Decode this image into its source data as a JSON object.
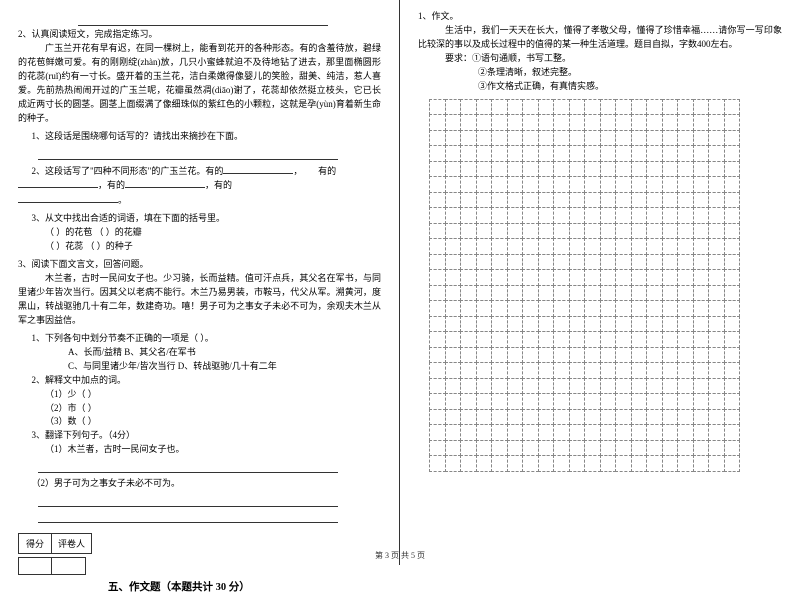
{
  "left": {
    "q2_title": "2、认真阅读短文，完成指定练习。",
    "passage_p1": "广玉兰开花有早有迟，在同一棵树上，能看到花开的各种形态。有的含羞待放，碧绿的花苞鲜嫩可爱。有的刚刚绽(zhàn)放，几只小蜜蜂就迫不及待地钻了进去，那里面椭圆形的花蕊(ruǐ)约有一寸长。盛开着的玉兰花，洁白柔嫩得像婴儿的笑脸，甜美、纯洁，惹人喜爱。先前热热闹闹开过的广玉兰呢，花瓣虽然凋(diāo)谢了，花蕊却依然挺立枝头，它已长成近两寸长的圆茎。圆茎上面缀满了像细珠似的紫红色的小颗粒，这就是孕(yùn)育着新生命的种子。",
    "q2_1": "1、这段话是围绕哪句话写的？请找出来摘抄在下面。",
    "q2_2a": "2、这段话写了\"四种不同形态\"的广玉兰花。有的",
    "q2_2b": "，",
    "q2_2c": "有的",
    "q2_2d": "，有的",
    "q2_2e": "，有的",
    "q2_3": "3、从文中找出合适的词语，填在下面的括号里。",
    "q2_3a": "（    ）的花苞    （    ）的花瓣",
    "q2_3b": "（    ）花蕊      （    ）的种子",
    "q3_title": "3、阅读下面文言文，回答问题。",
    "passage_p2": "木兰者，古时一民间女子也。少习骑，长而益精。值可汗点兵，其父名在军书，与同里诸少年皆次当行。因其父以老病不能行。木兰乃易男装，市鞍马，代父从军。溯黄河，度黑山，转战驱驰几十有二年，数建奇功。嘻！男子可为之事女子未必不可为，余观夫木兰从军之事因益信。",
    "q3_1": "1、下列各句中划分节奏不正确的一项是（    ）。",
    "q3_1a": "A、长而/益精            B、其父名/在军书",
    "q3_1b": "C、与同里诸少年/皆次当行    D、转战驱驰/几十有二年",
    "q3_2": "2、解释文中加点的词。",
    "q3_2a": "（1）少（            ）",
    "q3_2b": "（2）市（            ）",
    "q3_2c": "（3）数（            ）",
    "q3_3": "3、翻译下列句子。（4分）",
    "q3_3a": "（1）木兰者，古时一民间女子也。",
    "q3_3b": "（2）男子可为之事女子未必不可为。",
    "score_label1": "得分",
    "score_label2": "评卷人",
    "section5": "五、作文题（本题共计 30 分）"
  },
  "right": {
    "q1": "1、作文。",
    "q1_p1": "生活中，我们一天天在长大，懂得了孝敬父母，懂得了珍惜幸福……请你写一写印象比较深的事以及成长过程中的值得的某一种生活道理。题目自拟，字数400左右。",
    "req_label": "要求：①语句通顺，书写工整。",
    "req2": "②条理清晰，叙述完整。",
    "req3": "③作文格式正确，有真情实感。",
    "grid": {
      "rows": 24,
      "cols": 20
    }
  },
  "footer": "第 3 页  共 5 页",
  "style": {
    "blank_short": 80,
    "blank_med": 110,
    "blank_long": 260
  }
}
